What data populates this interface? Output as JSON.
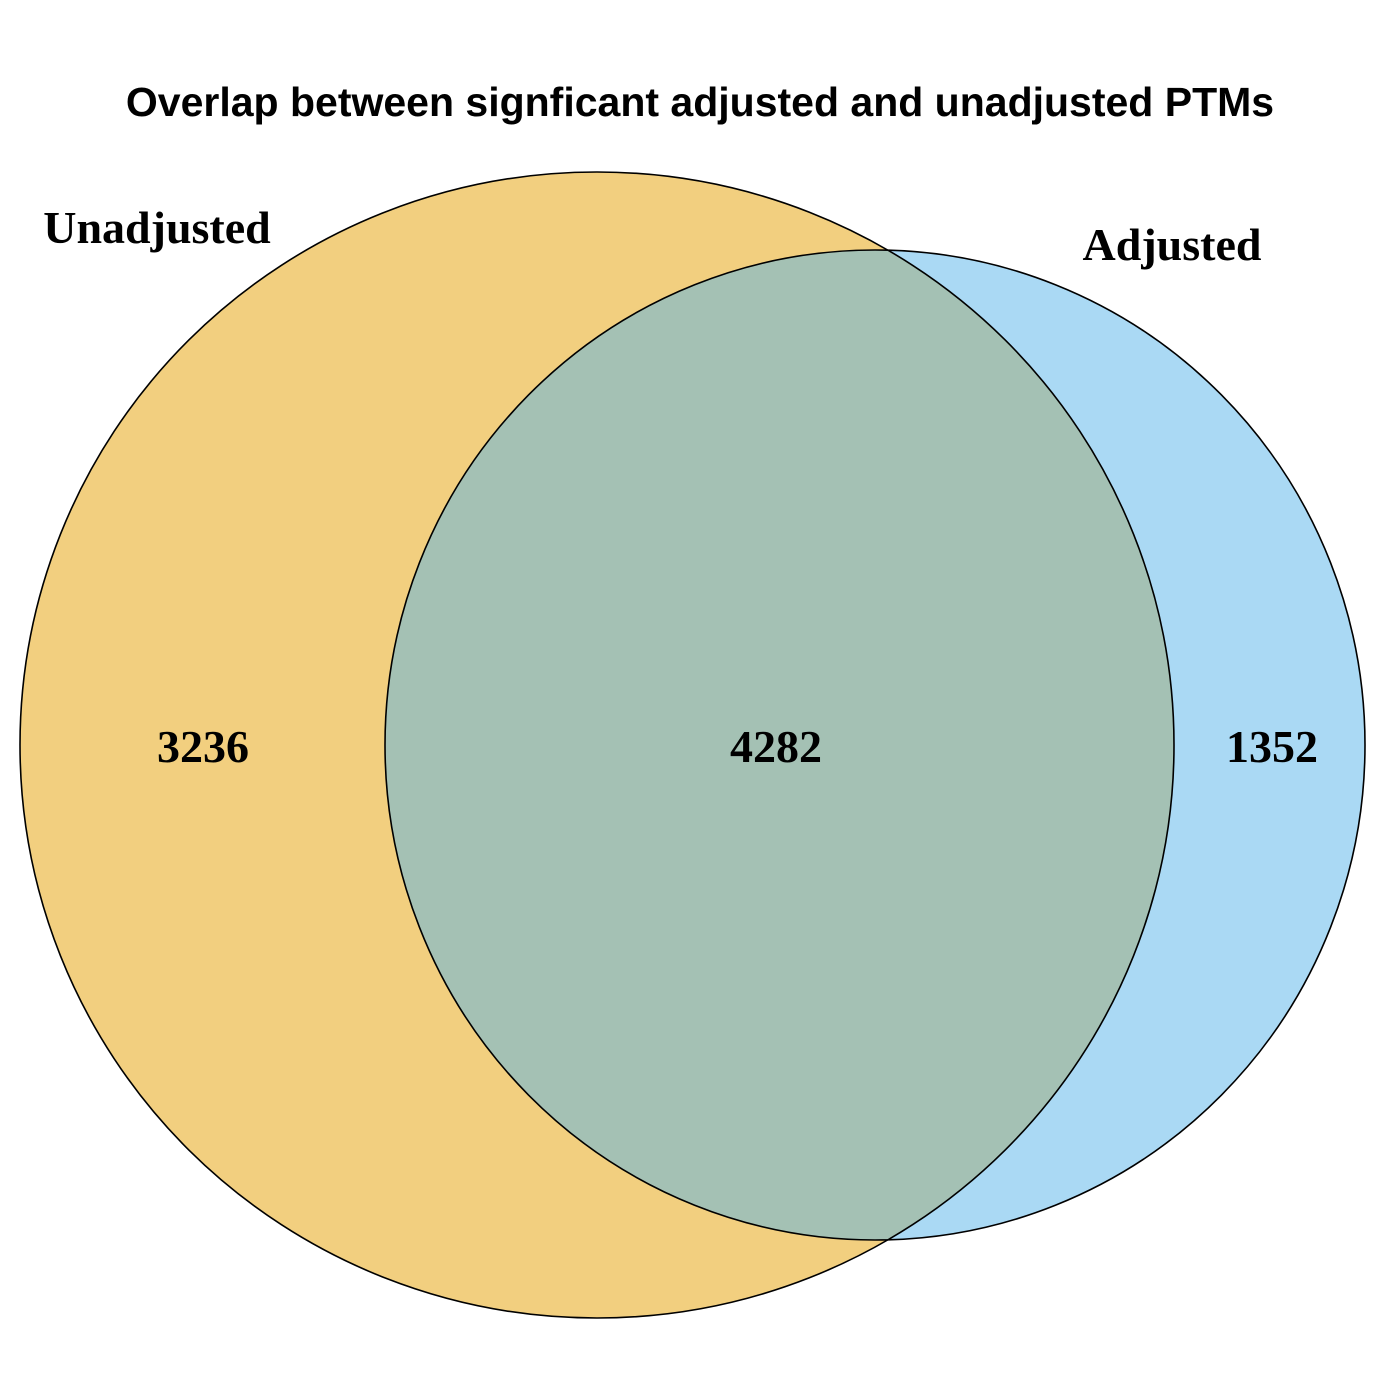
{
  "title": "Overlap between signficant adjusted and unadjusted PTMs",
  "sets": [
    {
      "name": "Unadjusted",
      "color": "#E69F00",
      "only_count": "3236"
    },
    {
      "name": "Adjusted",
      "color": "#56B4E9",
      "only_count": "1352"
    }
  ],
  "intersection": {
    "count": "4282"
  },
  "style": {
    "fill_opacity": 0.5,
    "outline_color": "#000000"
  }
}
